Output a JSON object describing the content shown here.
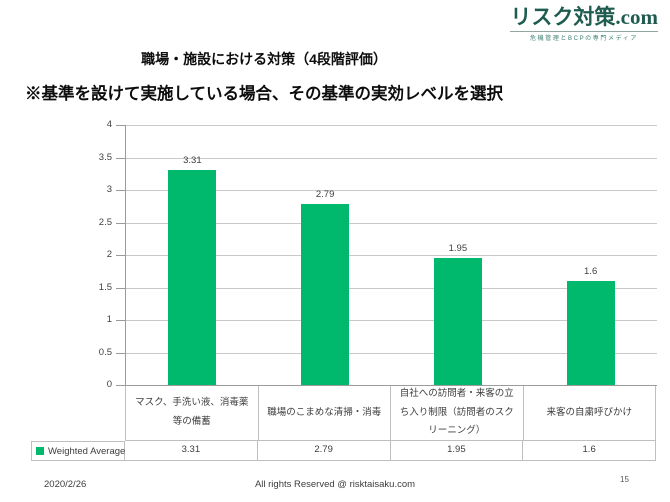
{
  "logo": {
    "title": "リスク対策.com",
    "tagline": "危機管理とBCPの専門メディア"
  },
  "titles": {
    "line1": "職場・施設における対策（4段階評価）",
    "line2": "※基準を設けて実施している場合、その基準の実効レベルを選択"
  },
  "chart_data": {
    "type": "bar",
    "title": "職場・施設における対策（4段階評価）",
    "categories": [
      "マスク、手洗い液、消毒薬等の備蓄",
      "職場のこまめな清掃・消毒",
      "自社への訪問者・来客の立ち入り制限（訪問者のスクリーニング）",
      "来客の自粛呼びかけ"
    ],
    "series": [
      {
        "name": "Weighted Average",
        "values": [
          3.31,
          2.79,
          1.95,
          1.6
        ]
      }
    ],
    "value_labels": [
      "3.31",
      "2.79",
      "1.95",
      "1.6"
    ],
    "xlabel": "",
    "ylabel": "",
    "ylim": [
      0,
      4
    ],
    "yticks": [
      "4",
      "3.5",
      "3",
      "2.5",
      "2",
      "1.5",
      "1",
      "0.5",
      "0"
    ],
    "grid": true,
    "legend_position": "bottom-table",
    "bar_color": "#00b96d"
  },
  "footer": {
    "date": "2020/2/26",
    "copyright": "All rights Reserved @ risktaisaku.com",
    "page": "15"
  }
}
